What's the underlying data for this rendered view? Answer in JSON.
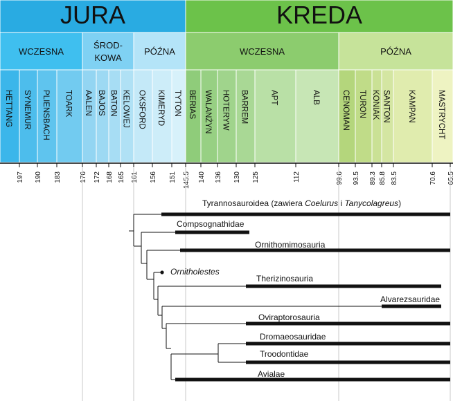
{
  "periods": [
    {
      "label": "JURA",
      "color": "#29abe2"
    },
    {
      "label": "KREDA",
      "color": "#6cc24a"
    }
  ],
  "epochs": [
    {
      "label": "WCZESNA",
      "color": "#3fbfef"
    },
    {
      "label": "ŚROD-",
      "label2": "KOWA",
      "color": "#7fd1f3"
    },
    {
      "label": "PÓŹNA",
      "color": "#b4e4f8"
    },
    {
      "label": "WCZESNA",
      "color": "#8ccc6e"
    },
    {
      "label": "PÓŹNA",
      "color": "#c6e39a"
    }
  ],
  "stages": [
    {
      "label": "HETTANG",
      "color": "#3bb6ea"
    },
    {
      "label": "SYNEMUR",
      "color": "#4dbdec"
    },
    {
      "label": "PLIENSBACH",
      "color": "#5fc4ee"
    },
    {
      "label": "TOARK",
      "color": "#72cbf0"
    },
    {
      "label": "AALEN",
      "color": "#93d5f2"
    },
    {
      "label": "BAJOS",
      "color": "#9dd9f3"
    },
    {
      "label": "BATON",
      "color": "#a7ddf4"
    },
    {
      "label": "KELOWEJ",
      "color": "#b0e1f5"
    },
    {
      "label": "OKSFORD",
      "color": "#c4e9f8"
    },
    {
      "label": "KIMERYD",
      "color": "#cdedf9"
    },
    {
      "label": "TYTON",
      "color": "#d7f1fa"
    },
    {
      "label": "BERIAS",
      "color": "#8fcc7a"
    },
    {
      "label": "WALANŻYN",
      "color": "#97d083"
    },
    {
      "label": "HOTERYW",
      "color": "#a0d48c"
    },
    {
      "label": "BARREM",
      "color": "#a9d895"
    },
    {
      "label": "APT",
      "color": "#b9e0a6"
    },
    {
      "label": "ALB",
      "color": "#c7e6b5"
    },
    {
      "label": "CENOMAN",
      "color": "#b4d67c"
    },
    {
      "label": "TURON",
      "color": "#c0dc88"
    },
    {
      "label": "KONIAK",
      "color": "#cae195"
    },
    {
      "label": "SANTON",
      "color": "#d4e6a2"
    },
    {
      "label": "KAMPAN",
      "color": "#e0ecae"
    },
    {
      "label": "MASTRYCHT",
      "color": "#eef3c2"
    }
  ],
  "ticks": [
    "197",
    "190",
    "183",
    "176",
    "172",
    "168",
    "165",
    "161",
    "156",
    "151",
    "145.5",
    "140",
    "136",
    "130",
    "125",
    "112",
    "99.6",
    "93.5",
    "89.3",
    "85.8",
    "83.5",
    "70.6",
    "65.5"
  ],
  "taxa": [
    {
      "text": "Tyrannosauroidea (zawiera ",
      "italic1": "Coelurus",
      "mid": " i ",
      "italic2": "Tanycolagreus",
      "end": ")"
    },
    {
      "text": "Compsognathidae"
    },
    {
      "text": "Ornithomimosauria"
    },
    {
      "text": "Ornitholestes",
      "italic": true
    },
    {
      "text": "Therizinosauria"
    },
    {
      "text": "Alvarezsauridae"
    },
    {
      "text": "Oviraptorosauria"
    },
    {
      "text": "Dromaeosauridae"
    },
    {
      "text": "Troodontidae"
    },
    {
      "text": "Avialae"
    }
  ]
}
